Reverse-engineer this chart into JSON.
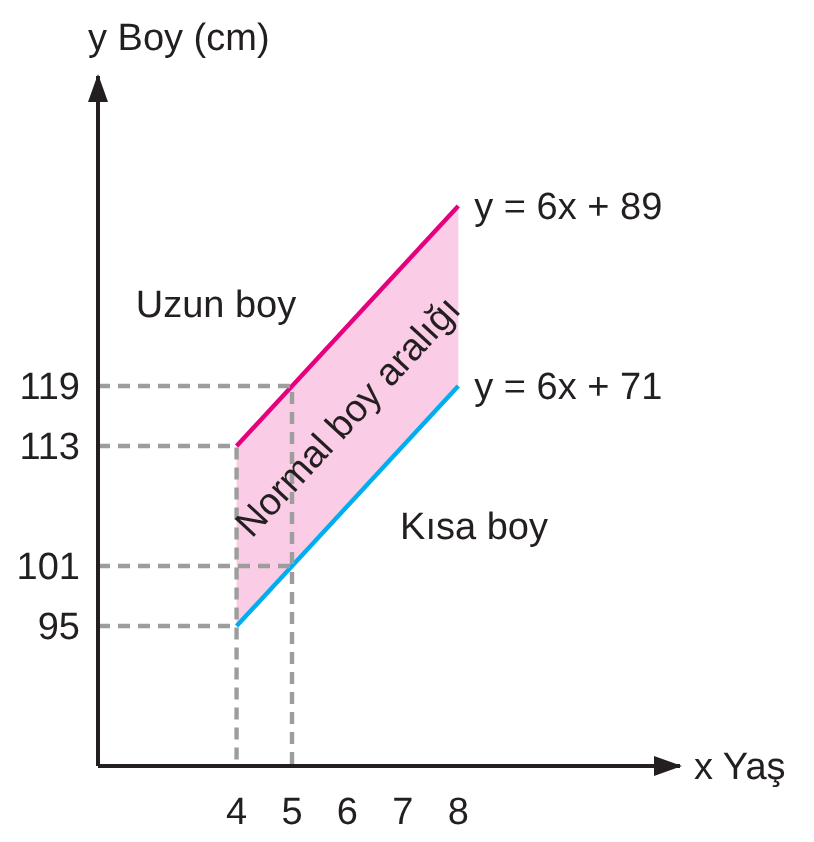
{
  "chart_data": {
    "type": "line",
    "xlabel": "x Yaş",
    "ylabel": "y Boy (cm)",
    "xlim": [
      1.5,
      12
    ],
    "ylim": [
      81,
      150
    ],
    "xticks": [
      4,
      5,
      6,
      7,
      8
    ],
    "yticks": [
      95,
      101,
      113,
      119
    ],
    "series": [
      {
        "name": "y = 6x + 89",
        "color": "#e6007e",
        "x": [
          4,
          8
        ],
        "values": [
          113,
          137
        ],
        "lower": [
          95,
          119
        ],
        "upper": [
          113,
          137
        ]
      },
      {
        "name": "y = 6x + 71",
        "color": "#00aeef",
        "x": [
          4,
          8
        ],
        "values": [
          95,
          119
        ]
      },
      {
        "color": "#9d9d9d",
        "line_style": "dashed",
        "x": [
          1.5,
          4,
          4
        ],
        "values": [
          113,
          113,
          81
        ]
      },
      {
        "color": "#9d9d9d",
        "line_style": "dashed",
        "x": [
          1.5,
          4
        ],
        "values": [
          95,
          95
        ]
      },
      {
        "color": "#9d9d9d",
        "line_style": "dashed",
        "x": [
          1.5,
          5,
          5
        ],
        "values": [
          119,
          119,
          81
        ]
      },
      {
        "color": "#9d9d9d",
        "line_style": "dashed",
        "x": [
          1.5,
          5
        ],
        "values": [
          101,
          101
        ]
      }
    ],
    "annotations": [
      "Uzun boy",
      "Normal boy aralığı",
      "Kısa boy"
    ]
  }
}
